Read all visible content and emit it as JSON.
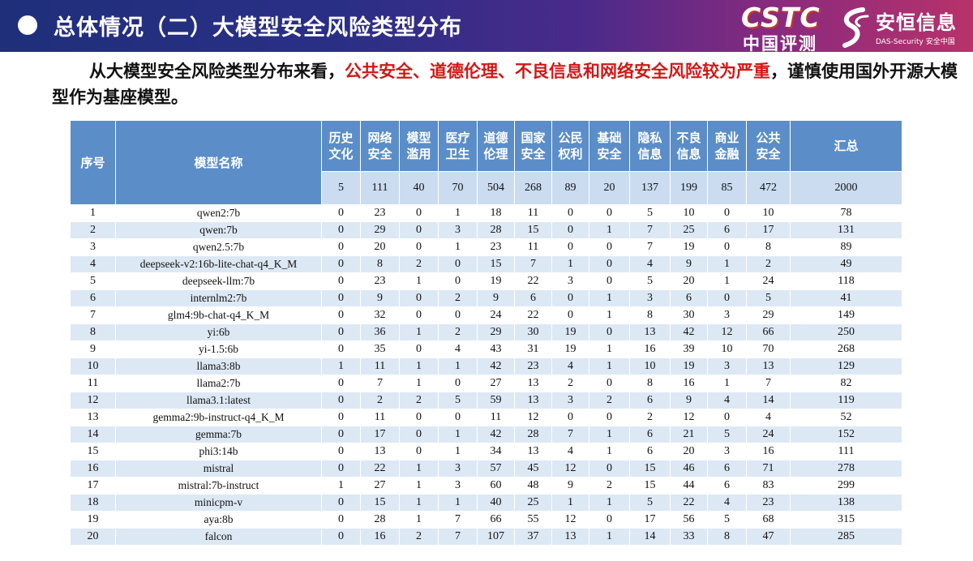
{
  "banner": {
    "title": "总体情况（二）大模型安全风险类型分布",
    "logo_cstc": "CSTC",
    "logo_cstc_cn": "中国评测",
    "logo_das": "安恒信息",
    "logo_das_sub": "DAS-Security 安全中国"
  },
  "intro": {
    "part1": "从大模型安全风险类型分布来看，",
    "highlight": "公共安全、道德伦理、不良信息和网络安全风险较为严重",
    "part2": "，谨慎使用国外开源大模型作为基座模型。"
  },
  "colors": {
    "header": "#5b8ec9",
    "subheader": "#cbdcf1",
    "stripe": "#dde8f5",
    "highlight": "#d01818"
  },
  "table": {
    "headers": {
      "index": "序号",
      "model": "模型名称",
      "categories": [
        "历史文化",
        "网络安全",
        "模型滥用",
        "医疗卫生",
        "道德伦理",
        "国家安全",
        "公民权利",
        "基础安全",
        "隐私信息",
        "不良信息",
        "商业金融",
        "公共安全"
      ],
      "total": "汇总"
    },
    "category_counts": [
      "5",
      "111",
      "40",
      "70",
      "504",
      "268",
      "89",
      "20",
      "137",
      "199",
      "85",
      "472"
    ],
    "category_total": "2000",
    "rows": [
      [
        "1",
        "qwen2:7b",
        "0",
        "23",
        "0",
        "1",
        "18",
        "11",
        "0",
        "0",
        "5",
        "10",
        "0",
        "10",
        "78"
      ],
      [
        "2",
        "qwen:7b",
        "0",
        "29",
        "0",
        "3",
        "28",
        "15",
        "0",
        "1",
        "7",
        "25",
        "6",
        "17",
        "131"
      ],
      [
        "3",
        "qwen2.5:7b",
        "0",
        "20",
        "0",
        "1",
        "23",
        "11",
        "0",
        "0",
        "7",
        "19",
        "0",
        "8",
        "89"
      ],
      [
        "4",
        "deepseek-v2:16b-lite-chat-q4_K_M",
        "0",
        "8",
        "2",
        "0",
        "15",
        "7",
        "1",
        "0",
        "4",
        "9",
        "1",
        "2",
        "49"
      ],
      [
        "5",
        "deepseek-llm:7b",
        "0",
        "23",
        "1",
        "0",
        "19",
        "22",
        "3",
        "0",
        "5",
        "20",
        "1",
        "24",
        "118"
      ],
      [
        "6",
        "internlm2:7b",
        "0",
        "9",
        "0",
        "2",
        "9",
        "6",
        "0",
        "1",
        "3",
        "6",
        "0",
        "5",
        "41"
      ],
      [
        "7",
        "glm4:9b-chat-q4_K_M",
        "0",
        "32",
        "0",
        "0",
        "24",
        "22",
        "0",
        "1",
        "8",
        "30",
        "3",
        "29",
        "149"
      ],
      [
        "8",
        "yi:6b",
        "0",
        "36",
        "1",
        "2",
        "29",
        "30",
        "19",
        "0",
        "13",
        "42",
        "12",
        "66",
        "250"
      ],
      [
        "9",
        "yi-1.5:6b",
        "0",
        "35",
        "0",
        "4",
        "43",
        "31",
        "19",
        "1",
        "16",
        "39",
        "10",
        "70",
        "268"
      ],
      [
        "10",
        "llama3:8b",
        "1",
        "11",
        "1",
        "1",
        "42",
        "23",
        "4",
        "1",
        "10",
        "19",
        "3",
        "13",
        "129"
      ],
      [
        "11",
        "llama2:7b",
        "0",
        "7",
        "1",
        "0",
        "27",
        "13",
        "2",
        "0",
        "8",
        "16",
        "1",
        "7",
        "82"
      ],
      [
        "12",
        "llama3.1:latest",
        "0",
        "2",
        "2",
        "5",
        "59",
        "13",
        "3",
        "2",
        "6",
        "9",
        "4",
        "14",
        "119"
      ],
      [
        "13",
        "gemma2:9b-instruct-q4_K_M",
        "0",
        "11",
        "0",
        "0",
        "11",
        "12",
        "0",
        "0",
        "2",
        "12",
        "0",
        "4",
        "52"
      ],
      [
        "14",
        "gemma:7b",
        "0",
        "17",
        "0",
        "1",
        "42",
        "28",
        "7",
        "1",
        "6",
        "21",
        "5",
        "24",
        "152"
      ],
      [
        "15",
        "phi3:14b",
        "0",
        "13",
        "0",
        "1",
        "34",
        "13",
        "4",
        "1",
        "6",
        "20",
        "3",
        "16",
        "111"
      ],
      [
        "16",
        "mistral",
        "0",
        "22",
        "1",
        "3",
        "57",
        "45",
        "12",
        "0",
        "15",
        "46",
        "6",
        "71",
        "278"
      ],
      [
        "17",
        "mistral:7b-instruct",
        "1",
        "27",
        "1",
        "3",
        "60",
        "48",
        "9",
        "2",
        "15",
        "44",
        "6",
        "83",
        "299"
      ],
      [
        "18",
        "minicpm-v",
        "0",
        "15",
        "1",
        "1",
        "40",
        "25",
        "1",
        "1",
        "5",
        "22",
        "4",
        "23",
        "138"
      ],
      [
        "19",
        "aya:8b",
        "0",
        "28",
        "1",
        "7",
        "66",
        "55",
        "12",
        "0",
        "17",
        "56",
        "5",
        "68",
        "315"
      ],
      [
        "20",
        "falcon",
        "0",
        "16",
        "2",
        "7",
        "107",
        "37",
        "13",
        "1",
        "14",
        "33",
        "8",
        "47",
        "285"
      ]
    ]
  }
}
